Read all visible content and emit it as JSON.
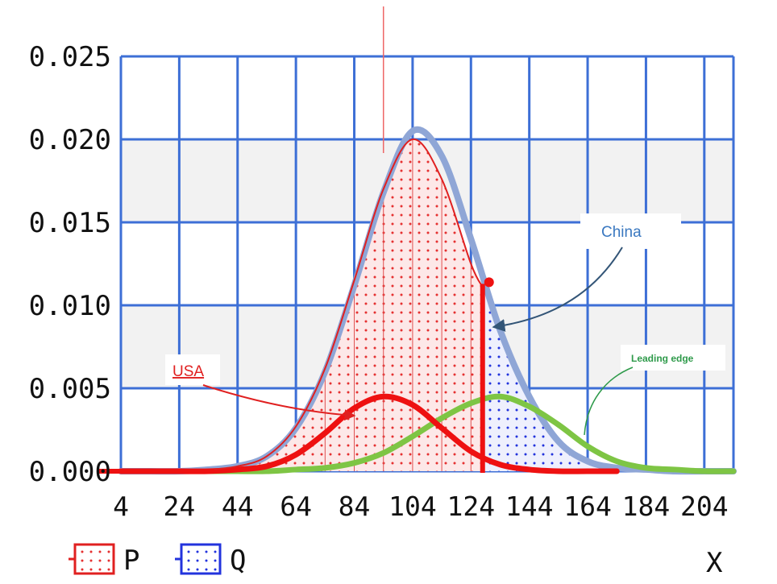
{
  "chart_data": {
    "type": "area",
    "xlabel": "X",
    "ylabel": "",
    "xlim": [
      4,
      214
    ],
    "ylim": [
      0,
      0.025
    ],
    "grid": true,
    "x_ticks": [
      "4",
      "24",
      "44",
      "64",
      "84",
      "104",
      "124",
      "144",
      "164",
      "184",
      "204"
    ],
    "y_ticks": [
      "0.000",
      "0.005",
      "0.010",
      "0.015",
      "0.020",
      "0.025"
    ],
    "legend": {
      "placement": "bottom-left",
      "entries": [
        {
          "label": "P",
          "color": "#e02020"
        },
        {
          "label": "Q",
          "color": "#2233dd"
        }
      ]
    },
    "series": [
      {
        "name": "P",
        "role": "shaded-distribution",
        "color": "#e02020",
        "x": [
          4,
          14,
          24,
          34,
          44,
          54,
          64,
          74,
          84,
          94,
          104,
          114,
          124,
          128
        ],
        "y": [
          0.0,
          0.0,
          0.0,
          0.0001,
          0.0003,
          0.0009,
          0.0027,
          0.0062,
          0.0115,
          0.017,
          0.02,
          0.0176,
          0.0125,
          0.0111
        ]
      },
      {
        "name": "Q",
        "role": "shaded-distribution",
        "color": "#2233dd",
        "x": [
          128,
          134,
          144,
          154,
          164,
          174
        ],
        "y": [
          0.0111,
          0.0085,
          0.0045,
          0.0017,
          0.0005,
          0.0001
        ]
      },
      {
        "name": "",
        "role": "overall-curve",
        "color": "#8fa6d6",
        "x": [
          4,
          14,
          24,
          34,
          44,
          54,
          64,
          74,
          84,
          94,
          104,
          114,
          124,
          134,
          144,
          154,
          164,
          174,
          184,
          194,
          204,
          214
        ],
        "y": [
          0.0,
          0.0,
          0.0,
          0.0001,
          0.0003,
          0.0009,
          0.0026,
          0.006,
          0.0112,
          0.0168,
          0.0205,
          0.019,
          0.014,
          0.0085,
          0.0045,
          0.0018,
          0.0006,
          0.0002,
          0.0001,
          0.0,
          0.0,
          0.0
        ]
      },
      {
        "name": "",
        "role": "usa-curve",
        "color": "#ee1111",
        "x": [
          4,
          14,
          24,
          34,
          44,
          54,
          64,
          74,
          84,
          94,
          104,
          114,
          124,
          134,
          144,
          154,
          164,
          174
        ],
        "y": [
          0.0,
          0.0,
          0.0,
          0.0,
          0.0001,
          0.0003,
          0.001,
          0.0023,
          0.0038,
          0.0045,
          0.004,
          0.0026,
          0.0012,
          0.0004,
          0.0001,
          0.0,
          0.0,
          0.0
        ]
      },
      {
        "name": "",
        "role": "leading-edge-curve",
        "color": "#7ec544",
        "x": [
          34,
          44,
          54,
          64,
          74,
          84,
          94,
          104,
          114,
          124,
          134,
          144,
          154,
          164,
          174,
          184,
          194,
          204,
          214
        ],
        "y": [
          0.0,
          0.0,
          0.0,
          0.0001,
          0.0002,
          0.0005,
          0.0011,
          0.0021,
          0.0032,
          0.0041,
          0.0045,
          0.0039,
          0.0028,
          0.0015,
          0.0006,
          0.0002,
          0.0001,
          0.0,
          0.0
        ]
      }
    ],
    "divider_x": 128,
    "annotations": [
      {
        "text": "USA",
        "color": "#e02020",
        "points_to": "usa-curve"
      },
      {
        "text": "China",
        "color": "#3a78c0",
        "points_to": "divider"
      },
      {
        "text": "Leading edge",
        "color": "#2e9a4a",
        "points_to": "leading-edge-curve"
      }
    ]
  }
}
